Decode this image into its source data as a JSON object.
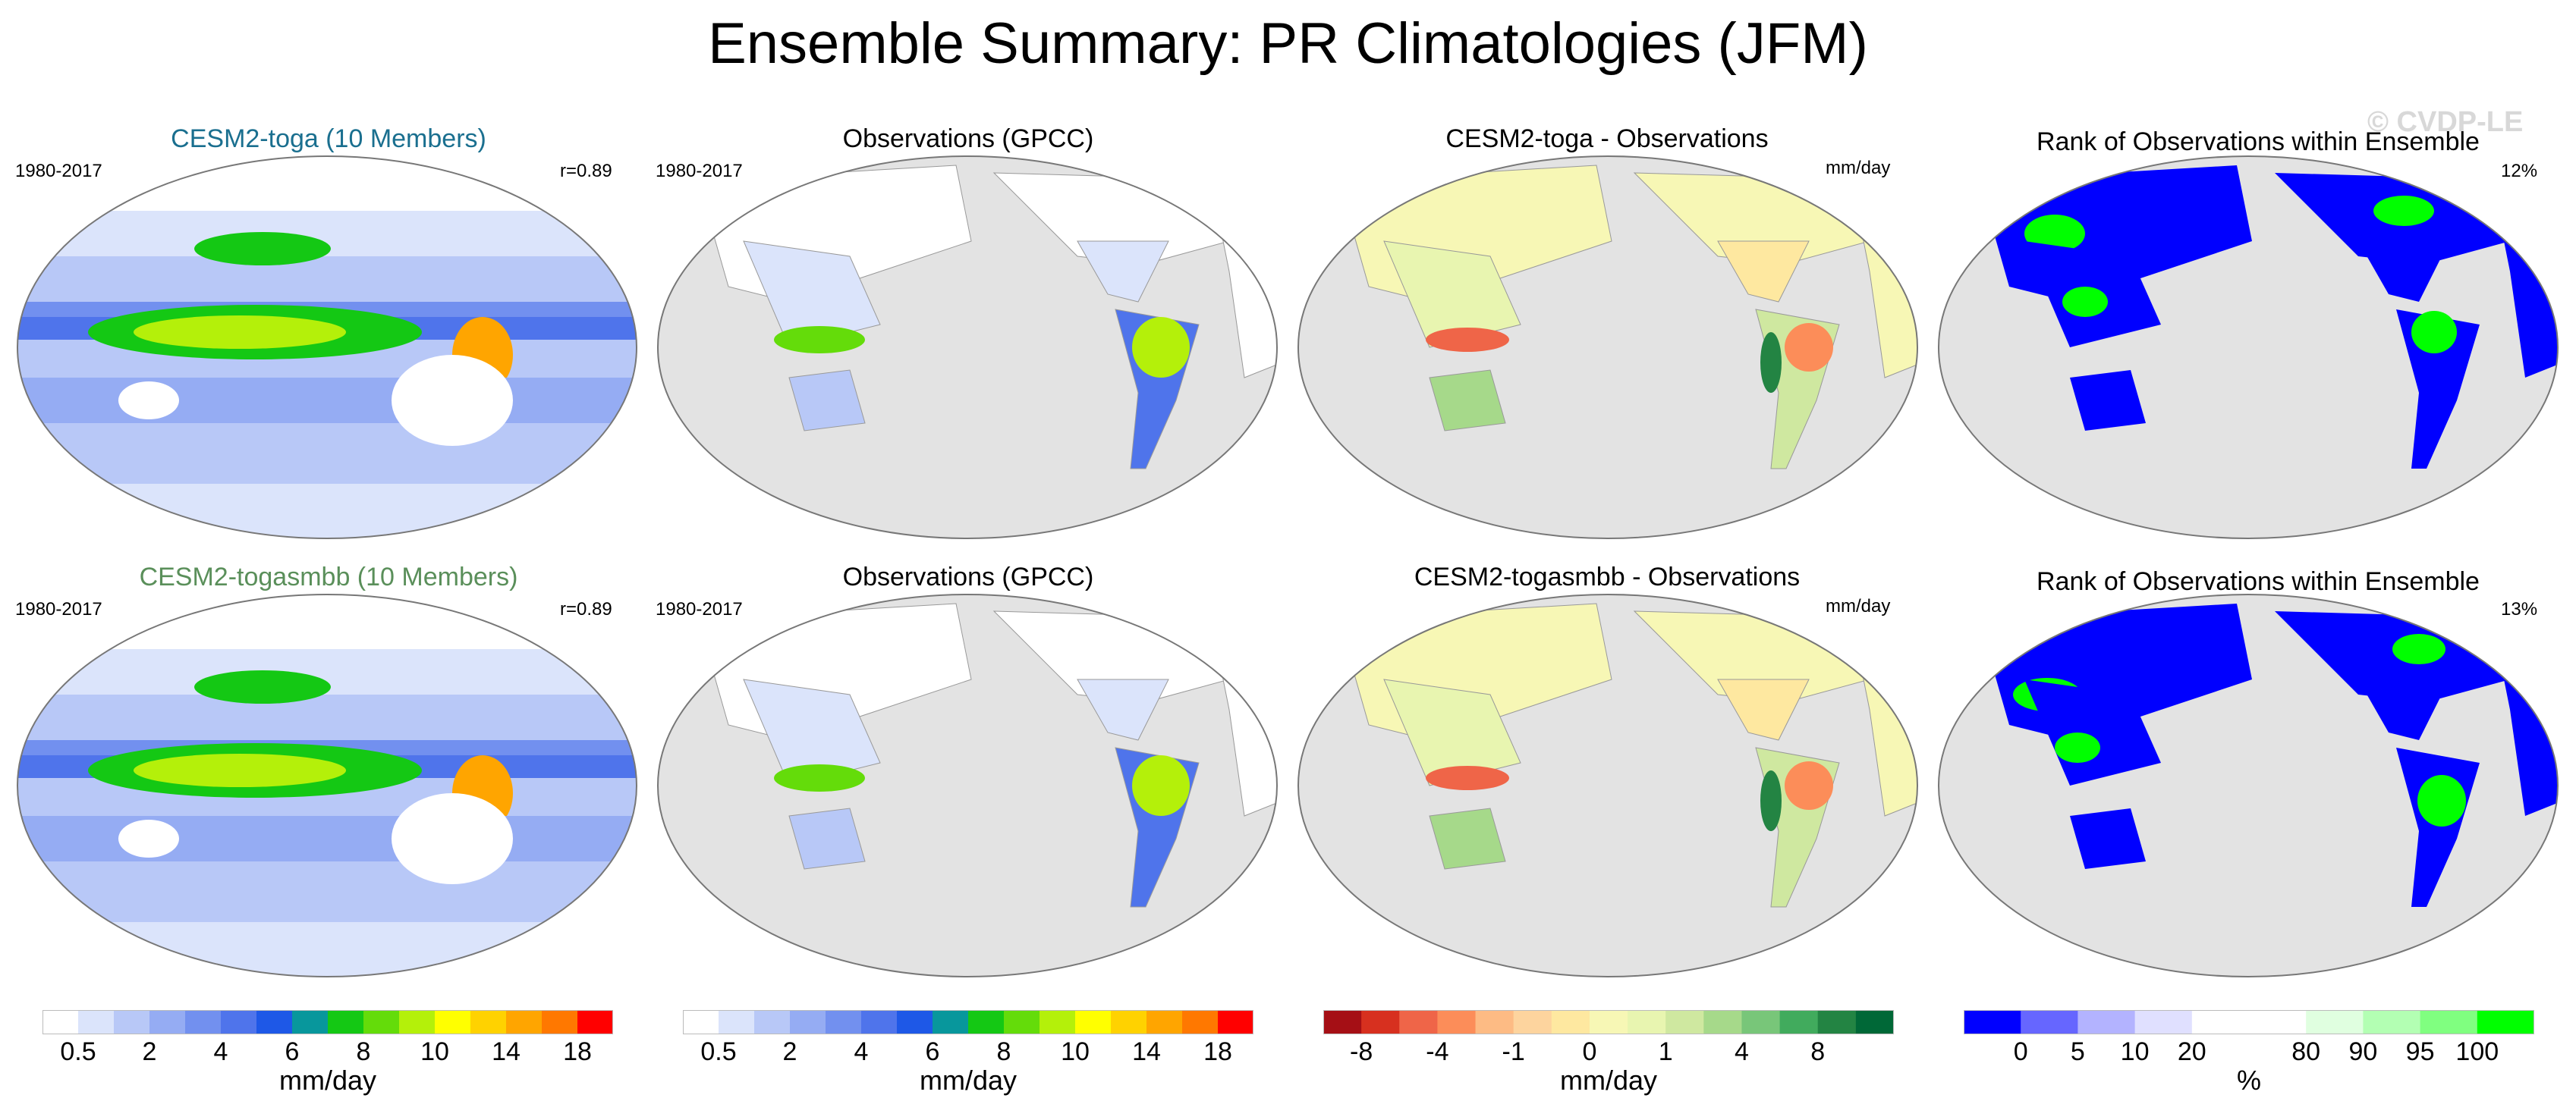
{
  "title": "Ensemble Summary: PR Climatologies (JFM)",
  "watermark": "© CVDP-LE",
  "rows": [
    {
      "model_panel": {
        "title": "CESM2-toga (10 Members)",
        "title_color": "#1a6f8f",
        "period": "1980-2017",
        "corr": "r=0.89"
      },
      "obs_panel": {
        "title": "Observations (GPCC)",
        "period": "1980-2017"
      },
      "diff_panel": {
        "title": "CESM2-toga - Observations",
        "units": "mm/day"
      },
      "rank_panel": {
        "title": "Rank of Observations within Ensemble",
        "pct": "12%"
      }
    },
    {
      "model_panel": {
        "title": "CESM2-togasmbb (10 Members)",
        "title_color": "#5a8f5a",
        "period": "1980-2017",
        "corr": "r=0.89"
      },
      "obs_panel": {
        "title": "Observations (GPCC)",
        "period": "1980-2017"
      },
      "diff_panel": {
        "title": "CESM2-togasmbb - Observations",
        "units": "mm/day"
      },
      "rank_panel": {
        "title": "Rank of Observations within Ensemble",
        "pct": "13%"
      }
    }
  ],
  "colorbars": {
    "precip": {
      "colors": [
        "#ffffff",
        "#dbe4fb",
        "#b8c8f7",
        "#95acf3",
        "#7290ef",
        "#4f74eb",
        "#1e58e7",
        "#08979c",
        "#14c814",
        "#64dc0a",
        "#b4f00a",
        "#ffff00",
        "#ffd200",
        "#ffa500",
        "#ff7800",
        "#ff0000"
      ],
      "ticks": [
        "0.5",
        "2",
        "4",
        "6",
        "8",
        "10",
        "14",
        "18"
      ],
      "units": "mm/day"
    },
    "diff": {
      "colors": [
        "#a50f15",
        "#d7301f",
        "#ef6548",
        "#fc8d59",
        "#fdbb84",
        "#fdd49e",
        "#fee8a0",
        "#f7f7b5",
        "#e8f5b0",
        "#cfe8a0",
        "#a6d98a",
        "#78c679",
        "#41ab5d",
        "#238443",
        "#006837"
      ],
      "ticks": [
        "-8",
        "-4",
        "-1",
        "0",
        "1",
        "4",
        "8"
      ],
      "units": "mm/day"
    },
    "rank": {
      "colors": [
        "#0000ff",
        "#6666ff",
        "#b3b3ff",
        "#e0e0ff",
        "#ffffff",
        "#ffffff",
        "#e0ffe0",
        "#b3ffb3",
        "#80ff80",
        "#00ff00"
      ],
      "ticks": [
        "0",
        "5",
        "10",
        "20",
        "80",
        "90",
        "95",
        "100"
      ],
      "units": "%"
    }
  },
  "palette": {
    "ocean_gray": "#e3e3e3",
    "land_outline": "#999999",
    "blue": "#0000ff",
    "green": "#00ff00"
  }
}
